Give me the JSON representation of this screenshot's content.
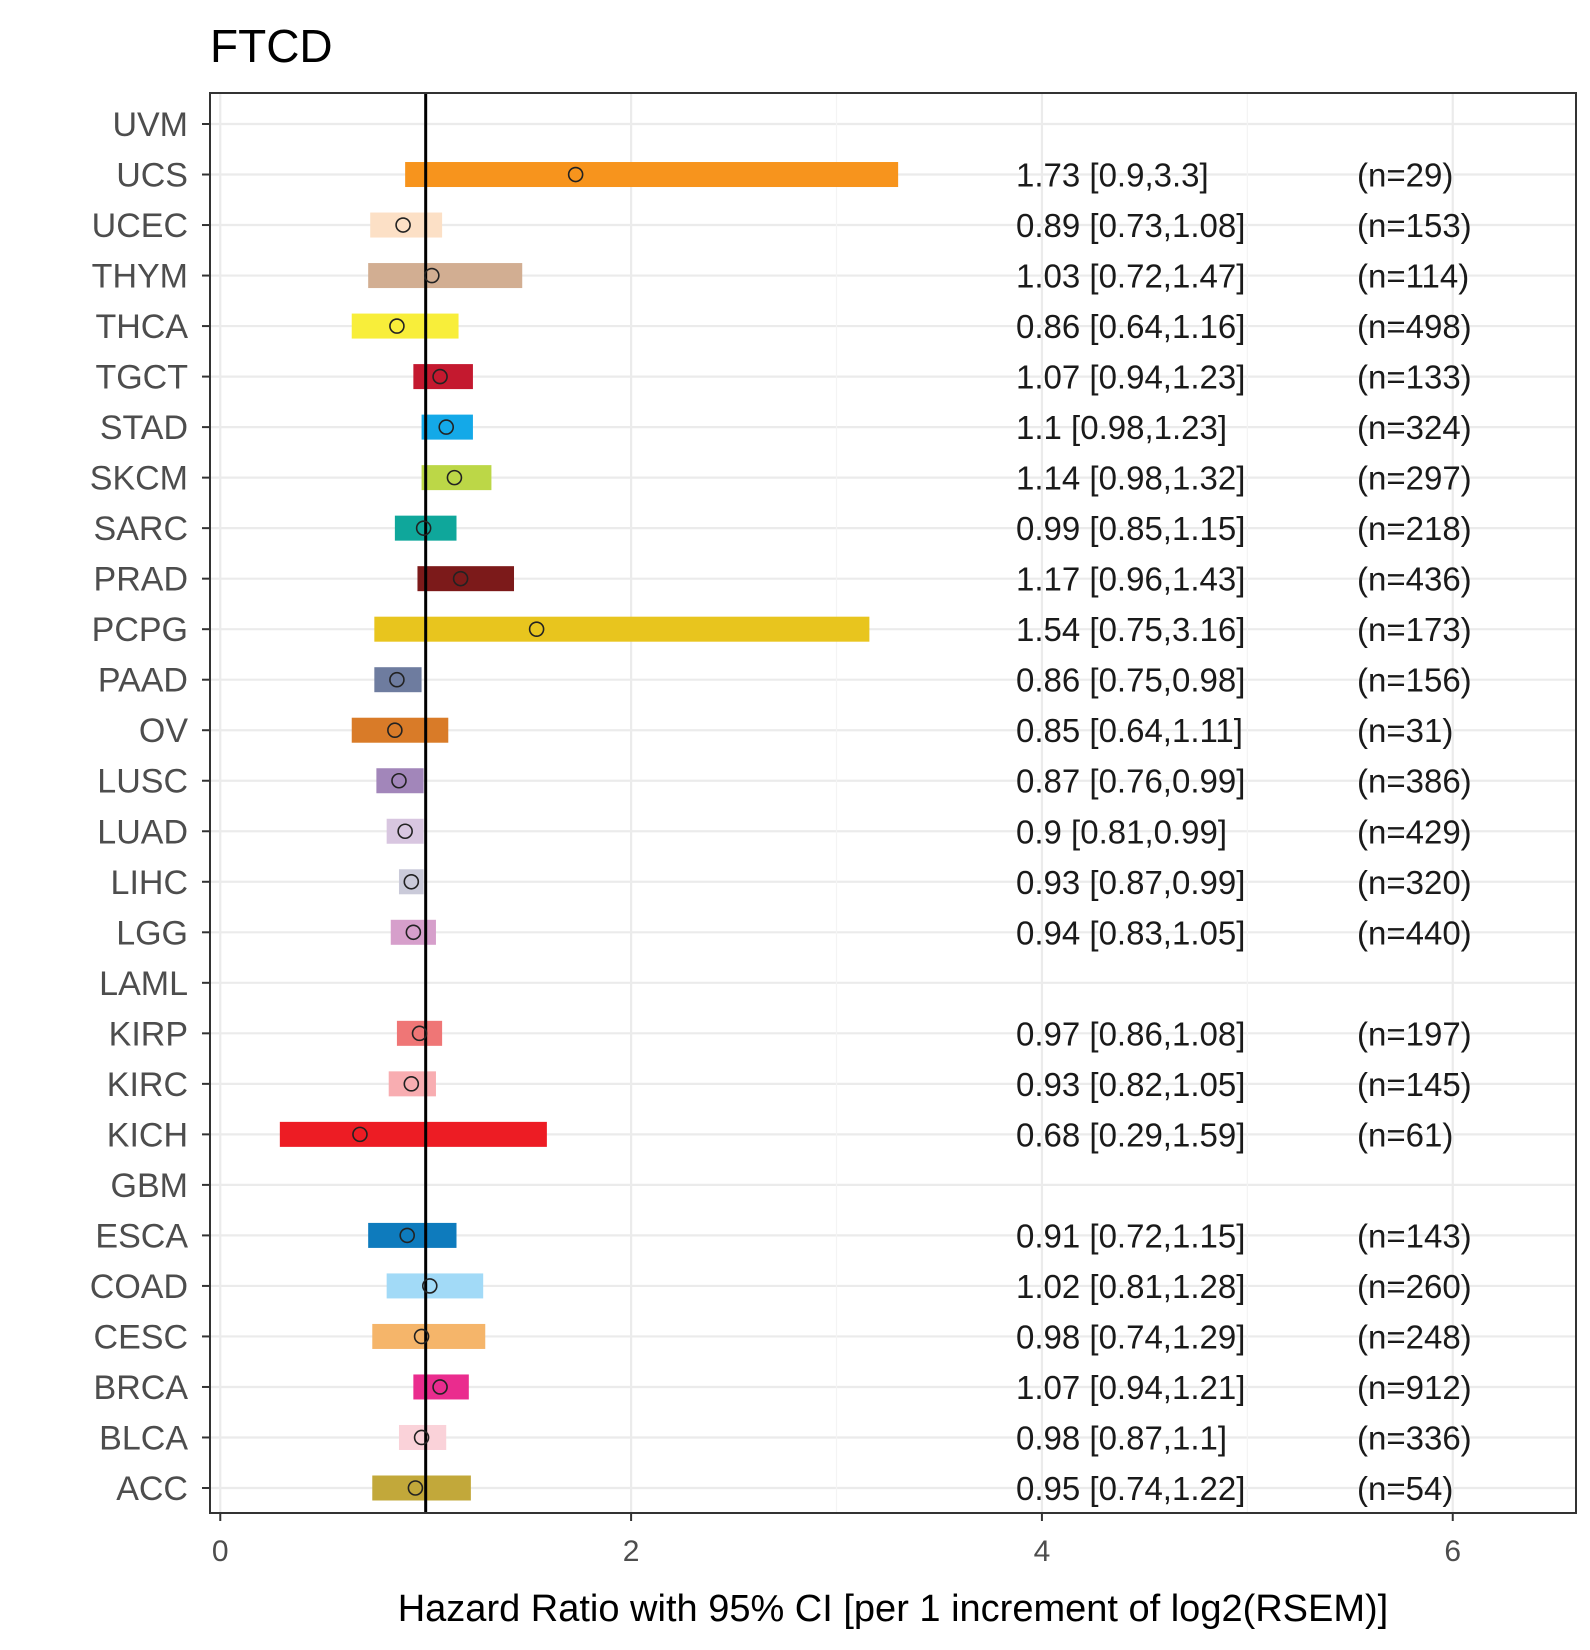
{
  "chart_data": {
    "type": "forest",
    "title": "FTCD",
    "xlabel": "Hazard Ratio with 95% CI [per 1 increment of log2(RSEM)]",
    "ylabel": "",
    "xlim": [
      -0.05,
      6.6
    ],
    "xticks": [
      0,
      2,
      4,
      6
    ],
    "reference_line": 1,
    "grid": true,
    "rows": [
      {
        "label": "UVM",
        "hr": null,
        "lo": null,
        "hi": null,
        "text": "",
        "n": "",
        "color": "#999999"
      },
      {
        "label": "UCS",
        "hr": 1.73,
        "lo": 0.9,
        "hi": 3.3,
        "text": "1.73 [0.9,3.3]",
        "n": "(n=29)",
        "color": "#F7941D"
      },
      {
        "label": "UCEC",
        "hr": 0.89,
        "lo": 0.73,
        "hi": 1.08,
        "text": "0.89 [0.73,1.08]",
        "n": "(n=153)",
        "color": "#FCE0C6"
      },
      {
        "label": "THYM",
        "hr": 1.03,
        "lo": 0.72,
        "hi": 1.47,
        "text": "1.03 [0.72,1.47]",
        "n": "(n=114)",
        "color": "#D2AE92"
      },
      {
        "label": "THCA",
        "hr": 0.86,
        "lo": 0.64,
        "hi": 1.16,
        "text": "0.86 [0.64,1.16]",
        "n": "(n=498)",
        "color": "#F8EE3A"
      },
      {
        "label": "TGCT",
        "hr": 1.07,
        "lo": 0.94,
        "hi": 1.23,
        "text": "1.07 [0.94,1.23]",
        "n": "(n=133)",
        "color": "#C4192F"
      },
      {
        "label": "STAD",
        "hr": 1.1,
        "lo": 0.98,
        "hi": 1.23,
        "text": "1.1 [0.98,1.23]",
        "n": "(n=324)",
        "color": "#14A9E8"
      },
      {
        "label": "SKCM",
        "hr": 1.14,
        "lo": 0.98,
        "hi": 1.32,
        "text": "1.14 [0.98,1.32]",
        "n": "(n=297)",
        "color": "#BCD747"
      },
      {
        "label": "SARC",
        "hr": 0.99,
        "lo": 0.85,
        "hi": 1.15,
        "text": "0.99 [0.85,1.15]",
        "n": "(n=218)",
        "color": "#0FA79B"
      },
      {
        "label": "PRAD",
        "hr": 1.17,
        "lo": 0.96,
        "hi": 1.43,
        "text": "1.17 [0.96,1.43]",
        "n": "(n=436)",
        "color": "#7C1A1A"
      },
      {
        "label": "PCPG",
        "hr": 1.54,
        "lo": 0.75,
        "hi": 3.16,
        "text": "1.54 [0.75,3.16]",
        "n": "(n=173)",
        "color": "#E8C51E"
      },
      {
        "label": "PAAD",
        "hr": 0.86,
        "lo": 0.75,
        "hi": 0.98,
        "text": "0.86 [0.75,0.98]",
        "n": "(n=156)",
        "color": "#6E7C9F"
      },
      {
        "label": "OV",
        "hr": 0.85,
        "lo": 0.64,
        "hi": 1.11,
        "text": "0.85 [0.64,1.11]",
        "n": "(n=31)",
        "color": "#D97B28"
      },
      {
        "label": "LUSC",
        "hr": 0.87,
        "lo": 0.76,
        "hi": 0.99,
        "text": "0.87 [0.76,0.99]",
        "n": "(n=386)",
        "color": "#A286BA"
      },
      {
        "label": "LUAD",
        "hr": 0.9,
        "lo": 0.81,
        "hi": 0.99,
        "text": "0.9 [0.81,0.99]",
        "n": "(n=429)",
        "color": "#D8C6E0"
      },
      {
        "label": "LIHC",
        "hr": 0.93,
        "lo": 0.87,
        "hi": 0.99,
        "text": "0.93 [0.87,0.99]",
        "n": "(n=320)",
        "color": "#CACAD9"
      },
      {
        "label": "LGG",
        "hr": 0.94,
        "lo": 0.83,
        "hi": 1.05,
        "text": "0.94 [0.83,1.05]",
        "n": "(n=440)",
        "color": "#D69FCB"
      },
      {
        "label": "LAML",
        "hr": null,
        "lo": null,
        "hi": null,
        "text": "",
        "n": "",
        "color": "#999999"
      },
      {
        "label": "KIRP",
        "hr": 0.97,
        "lo": 0.86,
        "hi": 1.08,
        "text": "0.97 [0.86,1.08]",
        "n": "(n=197)",
        "color": "#EF7676"
      },
      {
        "label": "KIRC",
        "hr": 0.93,
        "lo": 0.82,
        "hi": 1.05,
        "text": "0.93 [0.82,1.05]",
        "n": "(n=145)",
        "color": "#F8ADB1"
      },
      {
        "label": "KICH",
        "hr": 0.68,
        "lo": 0.29,
        "hi": 1.59,
        "text": "0.68 [0.29,1.59]",
        "n": "(n=61)",
        "color": "#ED1C24"
      },
      {
        "label": "GBM",
        "hr": null,
        "lo": null,
        "hi": null,
        "text": "",
        "n": "",
        "color": "#999999"
      },
      {
        "label": "ESCA",
        "hr": 0.91,
        "lo": 0.72,
        "hi": 1.15,
        "text": "0.91 [0.72,1.15]",
        "n": "(n=143)",
        "color": "#0E7BBD"
      },
      {
        "label": "COAD",
        "hr": 1.02,
        "lo": 0.81,
        "hi": 1.28,
        "text": "1.02 [0.81,1.28]",
        "n": "(n=260)",
        "color": "#A2DAF7"
      },
      {
        "label": "CESC",
        "hr": 0.98,
        "lo": 0.74,
        "hi": 1.29,
        "text": "0.98 [0.74,1.29]",
        "n": "(n=248)",
        "color": "#F5B56A"
      },
      {
        "label": "BRCA",
        "hr": 1.07,
        "lo": 0.94,
        "hi": 1.21,
        "text": "1.07 [0.94,1.21]",
        "n": "(n=912)",
        "color": "#EA2C8E"
      },
      {
        "label": "BLCA",
        "hr": 0.98,
        "lo": 0.87,
        "hi": 1.1,
        "text": "0.98 [0.87,1.1]",
        "n": "(n=336)",
        "color": "#FAD2D9"
      },
      {
        "label": "ACC",
        "hr": 0.95,
        "lo": 0.74,
        "hi": 1.22,
        "text": "0.95 [0.74,1.22]",
        "n": "(n=54)",
        "color": "#C2A83A"
      }
    ]
  }
}
